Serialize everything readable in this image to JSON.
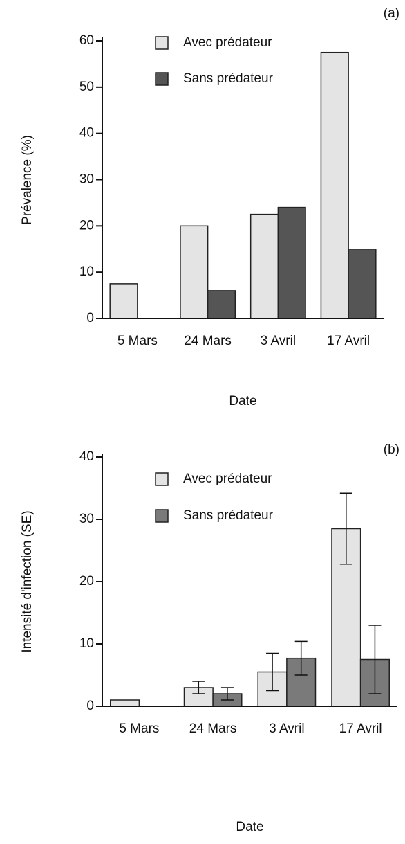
{
  "chart_data": [
    {
      "type": "bar",
      "panel_label": "(a)",
      "x_label": "Date",
      "y_label": "Prévalence (%)",
      "categories": [
        "5 Mars",
        "24 Mars",
        "3 Avril",
        "17 Avril"
      ],
      "series": [
        {
          "name": "Avec prédateur",
          "color": "#e4e4e4",
          "values": [
            7.5,
            20,
            22.5,
            57.5
          ]
        },
        {
          "name": "Sans prédateur",
          "color": "#555555",
          "values": [
            0,
            6,
            24,
            15
          ]
        }
      ],
      "ylim": [
        0,
        60
      ],
      "yticks": [
        0,
        10,
        20,
        30,
        40,
        50,
        60
      ]
    },
    {
      "type": "bar",
      "panel_label": "(b)",
      "x_label": "Date",
      "y_label": "Intensité d'infection (SE)",
      "categories": [
        "5 Mars",
        "24 Mars",
        "3 Avril",
        "17 Avril"
      ],
      "series": [
        {
          "name": "Avec prédateur",
          "color": "#e4e4e4",
          "values": [
            1,
            3,
            5.5,
            28.5
          ],
          "errors": [
            null,
            1,
            3,
            5.7
          ]
        },
        {
          "name": "Sans prédateur",
          "color": "#7a7a7a",
          "values": [
            0,
            2,
            7.7,
            7.5
          ],
          "errors": [
            null,
            1,
            2.7,
            5.5
          ]
        }
      ],
      "ylim": [
        0,
        40
      ],
      "yticks": [
        0,
        10,
        20,
        30,
        40
      ]
    }
  ]
}
